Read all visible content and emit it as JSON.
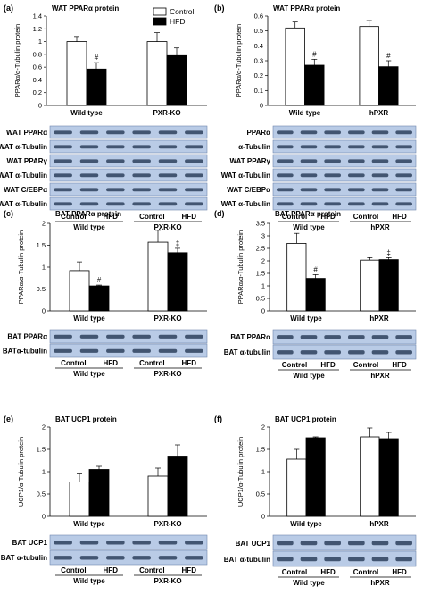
{
  "legend": {
    "control": "Control",
    "hfd": "HFD"
  },
  "groups": {
    "control": "Control",
    "hfd": "HFD"
  },
  "colors": {
    "control_fill": "#ffffff",
    "hfd_fill": "#000000",
    "blot_bg": "#b9cbe6",
    "blot_band": "#1b2e4a"
  },
  "chart_data": [
    {
      "type": "bar",
      "panel": "(a)",
      "title": "WAT PPARα protein",
      "ylabel": "PPARα/α-Tubulin protein",
      "categories": [
        "Wild type",
        "PXR-KO"
      ],
      "ylim": [
        0,
        1.4
      ],
      "yticks": [
        "0",
        "0.2",
        "0.4",
        "0.6",
        "0.8",
        "1",
        "1.2",
        "1.4"
      ],
      "series": [
        {
          "name": "Control",
          "values": [
            1.0,
            1.0
          ],
          "errors": [
            0.08,
            0.14
          ]
        },
        {
          "name": "HFD",
          "values": [
            0.57,
            0.78
          ],
          "errors": [
            0.1,
            0.12
          ]
        }
      ],
      "markers": [
        "",
        "#",
        "",
        ""
      ],
      "blot_labels": [
        "WAT PPARα",
        "WAT α-Tubulin",
        "WAT PPARγ",
        "WAT α-Tubulin",
        "WAT C/EBPα",
        "WAT α-Tubulin"
      ],
      "blot_groups": [
        "Wild type",
        "PXR-KO"
      ]
    },
    {
      "type": "bar",
      "panel": "(b)",
      "title": "WAT PPARα protein",
      "ylabel": "PPARα/α-Tubulin protein",
      "categories": [
        "Wild type",
        "hPXR"
      ],
      "ylim": [
        0,
        0.6
      ],
      "yticks": [
        "0",
        "0.1",
        "0.2",
        "0.3",
        "0.4",
        "0.5",
        "0.6"
      ],
      "series": [
        {
          "name": "Control",
          "values": [
            0.52,
            0.53
          ],
          "errors": [
            0.04,
            0.04
          ]
        },
        {
          "name": "HFD",
          "values": [
            0.27,
            0.26
          ],
          "errors": [
            0.04,
            0.04
          ]
        }
      ],
      "markers": [
        "",
        "#",
        "",
        "#"
      ],
      "blot_labels": [
        "PPARα",
        "α-Tubulin",
        "WAT PPARγ",
        "WAT α-Tubulin",
        "WAT C/EBPα",
        "WAT α-Tubulin"
      ],
      "blot_groups": [
        "Wild type",
        "hPXR"
      ]
    },
    {
      "type": "bar",
      "panel": "(c)",
      "title": "BAT PPARα protein",
      "ylabel": "PPARα/α-Tubulin protein",
      "categories": [
        "Wild type",
        "PXR-KO"
      ],
      "ylim": [
        0,
        2
      ],
      "yticks": [
        "0",
        "0.5",
        "1",
        "1.5",
        "2"
      ],
      "series": [
        {
          "name": "Control",
          "values": [
            0.92,
            1.57
          ],
          "errors": [
            0.2,
            0.27
          ]
        },
        {
          "name": "HFD",
          "values": [
            0.57,
            1.33
          ],
          "errors": [
            0.02,
            0.1
          ]
        }
      ],
      "markers": [
        "",
        "#",
        "",
        "‡"
      ],
      "blot_labels": [
        "BAT PPARα",
        "BATα-tubulin"
      ],
      "blot_groups": [
        "Wild type",
        "PXR-KO"
      ]
    },
    {
      "type": "bar",
      "panel": "(d)",
      "title": "BAT PPARα protein",
      "ylabel": "PPARα/α-Tubulin protein",
      "categories": [
        "Wild type",
        "hPXR"
      ],
      "ylim": [
        0,
        3.5
      ],
      "yticks": [
        "0",
        "0.5",
        "1",
        "1.5",
        "2",
        "2.5",
        "3",
        "3.5"
      ],
      "series": [
        {
          "name": "Control",
          "values": [
            2.7,
            2.03
          ],
          "errors": [
            0.4,
            0.1
          ]
        },
        {
          "name": "HFD",
          "values": [
            1.3,
            2.05
          ],
          "errors": [
            0.15,
            0.08
          ]
        }
      ],
      "markers": [
        "",
        "#",
        "",
        "‡"
      ],
      "blot_labels": [
        "BAT PPARα",
        "BAT α-tubulin"
      ],
      "blot_groups": [
        "Wild type",
        "hPXR"
      ]
    },
    {
      "type": "bar",
      "panel": "(e)",
      "title": "BAT UCP1 protein",
      "ylabel": "UCP1/α-Tubulin protein",
      "categories": [
        "Wild type",
        "PXR-KO"
      ],
      "ylim": [
        0,
        2
      ],
      "yticks": [
        "0",
        "0.5",
        "1",
        "1.5",
        "2"
      ],
      "series": [
        {
          "name": "Control",
          "values": [
            0.77,
            0.9
          ],
          "errors": [
            0.18,
            0.18
          ]
        },
        {
          "name": "HFD",
          "values": [
            1.05,
            1.35
          ],
          "errors": [
            0.07,
            0.25
          ]
        }
      ],
      "markers": [
        "",
        "",
        "",
        ""
      ],
      "blot_labels": [
        "BAT UCP1",
        "BAT α-tubulin"
      ],
      "blot_groups": [
        "Wild type",
        "PXR-KO"
      ]
    },
    {
      "type": "bar",
      "panel": "(f)",
      "title": "BAT UCP1 protein",
      "ylabel": "UCP1/α-Tubulin protein",
      "categories": [
        "Wild type",
        "hPXR"
      ],
      "ylim": [
        0,
        2
      ],
      "yticks": [
        "0",
        "0.5",
        "1",
        "1.5",
        "2"
      ],
      "series": [
        {
          "name": "Control",
          "values": [
            1.28,
            1.78
          ],
          "errors": [
            0.22,
            0.2
          ]
        },
        {
          "name": "HFD",
          "values": [
            1.76,
            1.74
          ],
          "errors": [
            0.02,
            0.14
          ]
        }
      ],
      "markers": [
        "",
        "",
        "",
        ""
      ],
      "blot_labels": [
        "BAT UCP1",
        "BAT α-tubulin"
      ],
      "blot_groups": [
        "Wild type",
        "hPXR"
      ]
    }
  ]
}
